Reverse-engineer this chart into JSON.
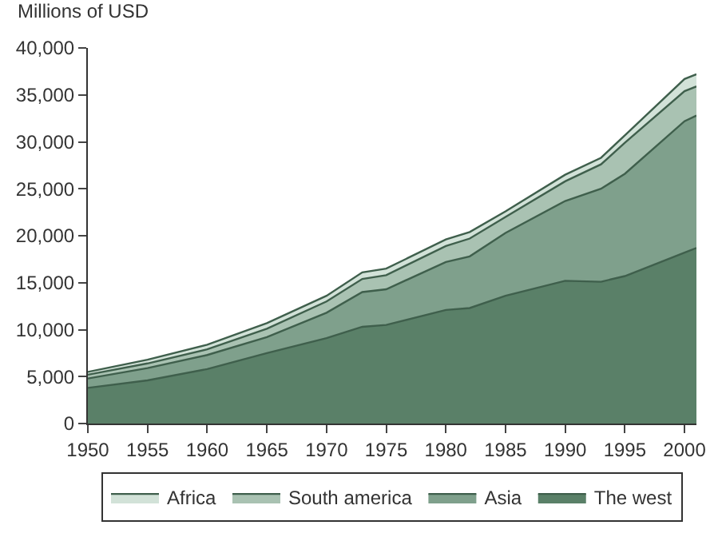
{
  "chart_data": {
    "type": "area",
    "stacked": true,
    "ylabel": "Millions of USD",
    "x": [
      1950,
      1955,
      1960,
      1965,
      1970,
      1973,
      1975,
      1980,
      1982,
      1985,
      1990,
      1993,
      1995,
      2000,
      2001
    ],
    "series": [
      {
        "name": "The west",
        "color": "#5a8068",
        "values": [
          3800,
          4600,
          5800,
          7500,
          9100,
          10300,
          10500,
          12100,
          12300,
          13600,
          15200,
          15100,
          15700,
          18200,
          18700
        ]
      },
      {
        "name": "Asia",
        "color": "#7fa08c",
        "values": [
          1000,
          1300,
          1500,
          1700,
          2700,
          3700,
          3800,
          5100,
          5500,
          6700,
          8500,
          9900,
          10900,
          14000,
          14100
        ]
      },
      {
        "name": "South america",
        "color": "#a9c2b2",
        "values": [
          400,
          500,
          600,
          900,
          1200,
          1400,
          1500,
          1700,
          1900,
          1700,
          2100,
          2600,
          3300,
          3200,
          3100
        ]
      },
      {
        "name": "Africa",
        "color": "#d2e2d8",
        "values": [
          300,
          400,
          500,
          600,
          600,
          700,
          700,
          700,
          700,
          600,
          700,
          700,
          800,
          1300,
          1300
        ]
      }
    ],
    "xlim": [
      1950,
      2001
    ],
    "xticks": [
      1950,
      1955,
      1960,
      1965,
      1970,
      1975,
      1980,
      1985,
      1990,
      1995,
      2000
    ],
    "ylim": [
      0,
      40000
    ],
    "yticks": [
      {
        "value": 0,
        "label": "0"
      },
      {
        "value": 5000,
        "label": "5,000"
      },
      {
        "value": 10000,
        "label": "10,000"
      },
      {
        "value": 15000,
        "label": "15,000"
      },
      {
        "value": 20000,
        "label": "20,000"
      },
      {
        "value": 25000,
        "label": "25,000"
      },
      {
        "value": 30000,
        "label": "30,000"
      },
      {
        "value": 35000,
        "label": "35,000"
      },
      {
        "value": 40000,
        "label": "40,000"
      }
    ],
    "legend": "bottom"
  }
}
